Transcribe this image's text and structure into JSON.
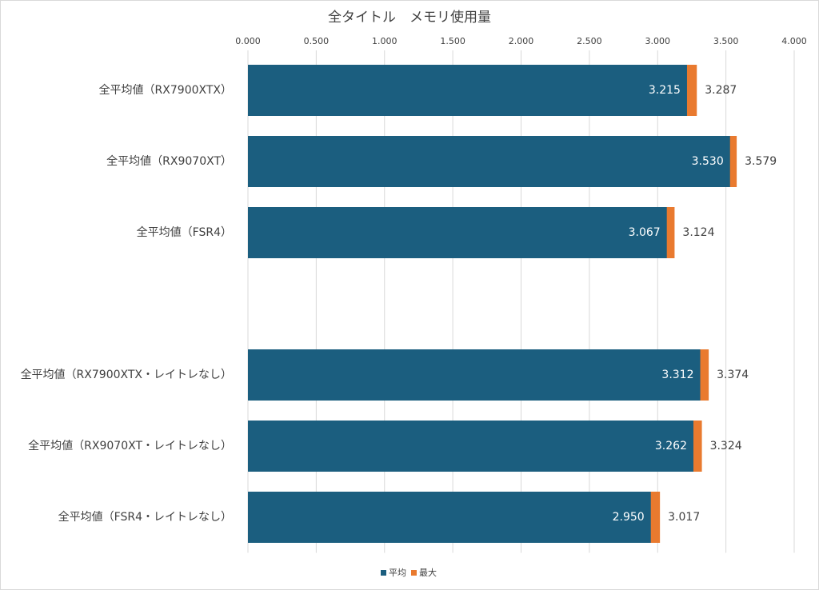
{
  "chart_data": {
    "type": "bar",
    "orientation": "horizontal",
    "overlap": true,
    "title": "全タイトル　メモリ使用量",
    "categories": [
      "全平均値（RX7900XTX）",
      "全平均値（RX9070XT）",
      "全平均値（FSR4）",
      null,
      "全平均値（RX7900XTX・レイトレなし）",
      "全平均値（RX9070XT・レイトレなし）",
      "全平均値（FSR4・レイトレなし）"
    ],
    "series": [
      {
        "name": "最大",
        "color": "#e97a2f",
        "values": [
          3.287,
          3.579,
          3.124,
          null,
          3.374,
          3.324,
          3.017
        ],
        "value_labels": [
          "3.287",
          "3.579",
          "3.124",
          null,
          "3.374",
          "3.324",
          "3.017"
        ]
      },
      {
        "name": "平均",
        "color": "#1b5e7f",
        "values": [
          3.215,
          3.53,
          3.067,
          null,
          3.312,
          3.262,
          2.95
        ],
        "value_labels": [
          "3.215",
          "3.530",
          "3.067",
          null,
          "3.312",
          "3.262",
          "2.950"
        ]
      }
    ],
    "xlim": [
      0,
      4
    ],
    "xticks": [
      {
        "value": 0,
        "label": "0.000"
      },
      {
        "value": 0.5,
        "label": "0.500"
      },
      {
        "value": 1,
        "label": "1.000"
      },
      {
        "value": 1.5,
        "label": "1.500"
      },
      {
        "value": 2,
        "label": "2.000"
      },
      {
        "value": 2.5,
        "label": "2.500"
      },
      {
        "value": 3,
        "label": "3.000"
      },
      {
        "value": 3.5,
        "label": "3.500"
      },
      {
        "value": 4,
        "label": "4.000"
      }
    ],
    "grid": true,
    "legend": "bottom"
  }
}
